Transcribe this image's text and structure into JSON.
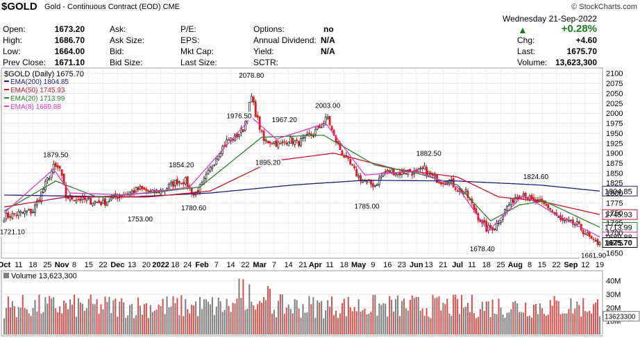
{
  "header": {
    "symbol": "$GOLD",
    "description": "Gold - Continuous Contract (EOD)",
    "exchange": "CME",
    "brand": "© StockCharts.com",
    "day": "Wednesday",
    "date": "21-Sep-2022",
    "pct_change": "+0.28%"
  },
  "quote": {
    "open_label": "Open:",
    "open": "1673.20",
    "high_label": "High:",
    "high": "1686.70",
    "low_label": "Low:",
    "low": "1664.00",
    "prev_label": "Prev Close:",
    "prev": "1671.10",
    "ask_label": "Ask:",
    "asksize_label": "Ask Size:",
    "bid_label": "Bid:",
    "bidsize_label": "Bid Size:",
    "pe_label": "P/E:",
    "eps_label": "EPS:",
    "mktcap_label": "Mkt Cap:",
    "lastsize_label": "Last Size:",
    "options_label": "Options:",
    "options": "no",
    "div_label": "Annual Dividend:",
    "div": "N/A",
    "yield_label": "Yield:",
    "yield": "N/A",
    "sctr_label": "SCTR:",
    "chg_label": "Chg:",
    "chg": "+4.60",
    "last_label": "Last:",
    "last": "1675.70",
    "volume_label": "Volume:",
    "volume": "13,623,300"
  },
  "colors": {
    "up": "#2b2b2b",
    "down": "#d42020",
    "ema200": "#1c1c7a",
    "ema50": "#c8102e",
    "ema20": "#2e7d2e",
    "ema8": "#e038c8",
    "vol_up": "#808080",
    "vol_down": "#d9534f"
  },
  "chart_data": {
    "type": "candlestick",
    "title": "$GOLD (Daily) 1675.70",
    "ylim": [
      1640,
      2110
    ],
    "y_ticks": [
      "2100",
      "2075",
      "2050",
      "2025",
      "2000",
      "1975",
      "1950",
      "1925",
      "1900",
      "1875",
      "1850",
      "1825",
      "1800",
      "1775",
      "1750",
      "1725",
      "1700",
      "1675",
      "1650"
    ],
    "x_ticks": [
      "Oct",
      "11",
      "18",
      "25",
      "Nov",
      "8",
      "15",
      "22",
      "Dec",
      "13",
      "20",
      "2022",
      "18",
      "24",
      "Feb",
      "7",
      "14",
      "22",
      "Mar",
      "7",
      "14",
      "21",
      "Apr",
      "11",
      "18",
      "May",
      "9",
      "16",
      "23",
      "Jun",
      "13",
      "21",
      "Jul",
      "11",
      "18",
      "25",
      "Aug",
      "8",
      "15",
      "22",
      "Sep",
      "12",
      "19"
    ],
    "legend": [
      {
        "name": "EMA(200)",
        "value": "1804.85"
      },
      {
        "name": "EMA(50)",
        "value": "1745.93"
      },
      {
        "name": "EMA(20)",
        "value": "1713.99"
      },
      {
        "name": "EMA(8)",
        "value": "1689.88"
      }
    ],
    "annotations": [
      {
        "label": "1721.10",
        "value": 1721.1,
        "type": "low"
      },
      {
        "label": "1879.50",
        "value": 1879.5,
        "type": "high"
      },
      {
        "label": "1753.00",
        "value": 1753.0,
        "type": "low"
      },
      {
        "label": "1854.20",
        "value": 1854.2,
        "type": "high"
      },
      {
        "label": "1780.60",
        "value": 1780.6,
        "type": "low"
      },
      {
        "label": "1976.50",
        "value": 1976.5,
        "type": "high"
      },
      {
        "label": "2078.80",
        "value": 2078.8,
        "type": "high"
      },
      {
        "label": "1895.20",
        "value": 1895.2,
        "type": "low"
      },
      {
        "label": "1967.20",
        "value": 1967.2,
        "type": "high"
      },
      {
        "label": "2003.00",
        "value": 2003.0,
        "type": "high"
      },
      {
        "label": "1785.00",
        "value": 1785.0,
        "type": "low"
      },
      {
        "label": "1882.50",
        "value": 1882.5,
        "type": "high"
      },
      {
        "label": "1678.40",
        "value": 1678.4,
        "type": "low"
      },
      {
        "label": "1824.60",
        "value": 1824.6,
        "type": "high"
      },
      {
        "label": "1661.90",
        "value": 1661.9,
        "type": "low"
      }
    ],
    "price_keypoints": [
      [
        0,
        1740
      ],
      [
        8,
        1750
      ],
      [
        14,
        1755
      ],
      [
        18,
        1800
      ],
      [
        24,
        1865
      ],
      [
        27,
        1860
      ],
      [
        30,
        1790
      ],
      [
        36,
        1785
      ],
      [
        42,
        1780
      ],
      [
        48,
        1775
      ],
      [
        54,
        1790
      ],
      [
        60,
        1800
      ],
      [
        66,
        1810
      ],
      [
        72,
        1800
      ],
      [
        78,
        1810
      ],
      [
        84,
        1830
      ],
      [
        88,
        1830
      ],
      [
        92,
        1795
      ],
      [
        96,
        1820
      ],
      [
        100,
        1860
      ],
      [
        104,
        1900
      ],
      [
        108,
        1930
      ],
      [
        112,
        1940
      ],
      [
        116,
        1960
      ],
      [
        120,
        2040
      ],
      [
        122,
        2000
      ],
      [
        126,
        1930
      ],
      [
        130,
        1930
      ],
      [
        134,
        1920
      ],
      [
        138,
        1935
      ],
      [
        142,
        1925
      ],
      [
        146,
        1935
      ],
      [
        150,
        1950
      ],
      [
        154,
        1970
      ],
      [
        157,
        1990
      ],
      [
        160,
        1940
      ],
      [
        164,
        1900
      ],
      [
        168,
        1870
      ],
      [
        172,
        1840
      ],
      [
        176,
        1825
      ],
      [
        180,
        1820
      ],
      [
        184,
        1850
      ],
      [
        188,
        1855
      ],
      [
        192,
        1850
      ],
      [
        196,
        1855
      ],
      [
        200,
        1850
      ],
      [
        204,
        1860
      ],
      [
        208,
        1840
      ],
      [
        212,
        1830
      ],
      [
        216,
        1830
      ],
      [
        220,
        1810
      ],
      [
        224,
        1800
      ],
      [
        226,
        1780
      ],
      [
        230,
        1740
      ],
      [
        234,
        1710
      ],
      [
        238,
        1715
      ],
      [
        240,
        1730
      ],
      [
        244,
        1765
      ],
      [
        248,
        1790
      ],
      [
        252,
        1800
      ],
      [
        256,
        1780
      ],
      [
        260,
        1775
      ],
      [
        264,
        1765
      ],
      [
        266,
        1755
      ],
      [
        270,
        1730
      ],
      [
        274,
        1725
      ],
      [
        278,
        1720
      ],
      [
        282,
        1700
      ],
      [
        286,
        1675
      ],
      [
        289,
        1675.7
      ]
    ],
    "ema_values": {
      "ema200": [
        [
          0,
          1795
        ],
        [
          60,
          1790
        ],
        [
          100,
          1800
        ],
        [
          140,
          1820
        ],
        [
          175,
          1832
        ],
        [
          220,
          1830
        ],
        [
          260,
          1820
        ],
        [
          289,
          1804.85
        ]
      ],
      "ema50": [
        [
          0,
          1765
        ],
        [
          30,
          1790
        ],
        [
          70,
          1790
        ],
        [
          100,
          1805
        ],
        [
          130,
          1880
        ],
        [
          160,
          1900
        ],
        [
          190,
          1860
        ],
        [
          220,
          1840
        ],
        [
          240,
          1790
        ],
        [
          260,
          1780
        ],
        [
          289,
          1745.93
        ]
      ],
      "ema20": [
        [
          0,
          1755
        ],
        [
          25,
          1830
        ],
        [
          45,
          1790
        ],
        [
          70,
          1800
        ],
        [
          95,
          1815
        ],
        [
          125,
          1940
        ],
        [
          155,
          1945
        ],
        [
          180,
          1870
        ],
        [
          200,
          1850
        ],
        [
          220,
          1820
        ],
        [
          236,
          1730
        ],
        [
          250,
          1770
        ],
        [
          262,
          1780
        ],
        [
          289,
          1713.99
        ]
      ],
      "ema8": [
        [
          0,
          1750
        ],
        [
          24,
          1860
        ],
        [
          32,
          1800
        ],
        [
          60,
          1795
        ],
        [
          90,
          1815
        ],
        [
          120,
          1990
        ],
        [
          132,
          1935
        ],
        [
          156,
          1975
        ],
        [
          175,
          1845
        ],
        [
          200,
          1855
        ],
        [
          220,
          1815
        ],
        [
          235,
          1705
        ],
        [
          252,
          1795
        ],
        [
          268,
          1745
        ],
        [
          289,
          1689.88
        ]
      ]
    },
    "volume": {
      "title": "Volume 13,623,300",
      "y_ticks": [
        "40M",
        "30M",
        "20M",
        "10M"
      ],
      "last_label": "13623300",
      "last": 13623300
    }
  }
}
